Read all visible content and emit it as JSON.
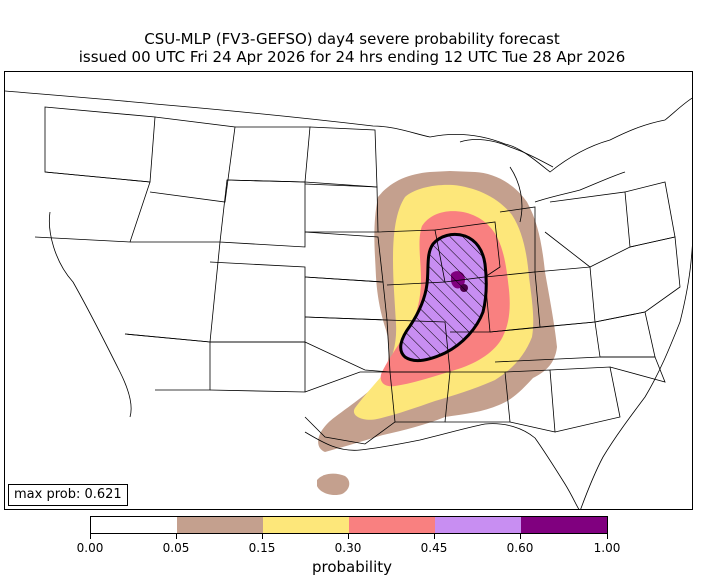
{
  "title": {
    "line1": "CSU-MLP (FV3-GEFSO) day4 severe probability forecast",
    "line2": "issued 00 UTC Fri 24 Apr 2026 for 24 hrs ending 12 UTC Tue 28 Apr 2026"
  },
  "max_prob_label": "max prob: 0.621",
  "colorbar": {
    "label": "probability",
    "ticks": [
      "0.00",
      "0.05",
      "0.15",
      "0.30",
      "0.45",
      "0.60",
      "1.00"
    ],
    "colors": [
      "#ffffff",
      "#c4a08e",
      "#fde77a",
      "#f98080",
      "#c88ef2",
      "#80007f"
    ]
  },
  "hatch_color": "#000000",
  "map_line_color": "#000000"
}
